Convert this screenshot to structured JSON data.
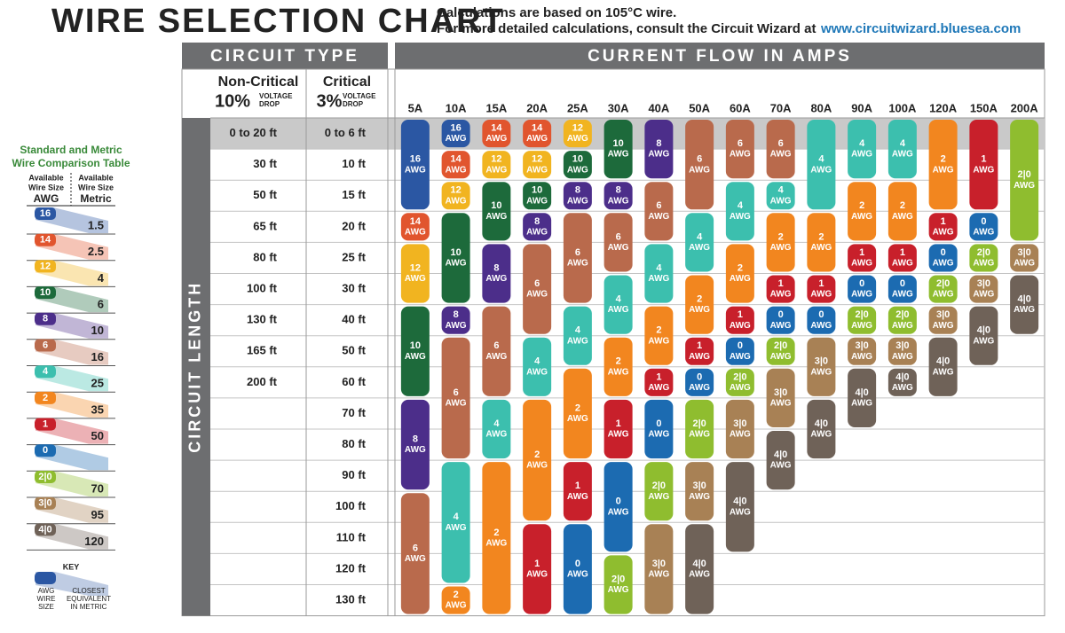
{
  "header": {
    "title": "WIRE SELECTION CHART",
    "note_line1": "Calculations are based on 105°C wire.",
    "note_line2": "For more detailed calculations, consult the Circuit Wizard at",
    "url": "www.circuitwizard.bluesea.com"
  },
  "table": {
    "circuit_type": "CIRCUIT TYPE",
    "current_flow": "CURRENT FLOW IN AMPS",
    "circuit_length": "CIRCUIT LENGTH",
    "non_critical": {
      "name": "Non-Critical",
      "percent": "10%",
      "drop_line1": "VOLTAGE",
      "drop_line2": "DROP"
    },
    "critical": {
      "name": "Critical",
      "percent": "3%",
      "drop_line1": "VOLTAGE",
      "drop_line2": "DROP"
    },
    "non_critical_lengths": [
      "0 to 20 ft",
      "30 ft",
      "50 ft",
      "65 ft",
      "80 ft",
      "100 ft",
      "130 ft",
      "165 ft",
      "200 ft"
    ],
    "critical_lengths": [
      "0 to 6 ft",
      "10 ft",
      "15 ft",
      "20 ft",
      "25 ft",
      "30 ft",
      "40 ft",
      "50 ft",
      "60 ft",
      "70 ft",
      "80 ft",
      "90 ft",
      "100 ft",
      "110 ft",
      "120 ft",
      "130 ft"
    ],
    "amps": [
      "5A",
      "10A",
      "15A",
      "20A",
      "25A",
      "30A",
      "40A",
      "50A",
      "60A",
      "70A",
      "80A",
      "90A",
      "100A",
      "120A",
      "150A",
      "200A"
    ],
    "unit": "AWG",
    "columns": [
      [
        "16",
        "16",
        "16",
        "14",
        "12",
        "12",
        "10",
        "10",
        "10",
        "8",
        "8",
        "8",
        "6",
        "6",
        "6",
        "6"
      ],
      [
        "16",
        "14",
        "12",
        "10",
        "10",
        "10",
        "8",
        "6",
        "6",
        "6",
        "6",
        "4",
        "4",
        "4",
        "4",
        "2"
      ],
      [
        "14",
        "12",
        "10",
        "10",
        "8",
        "8",
        "6",
        "6",
        "6",
        "4",
        "4",
        "2",
        "2",
        "2",
        "2",
        "2"
      ],
      [
        "14",
        "12",
        "10",
        "8",
        "6",
        "6",
        "6",
        "4",
        "4",
        "2",
        "2",
        "2",
        "2",
        "1",
        "1",
        "1"
      ],
      [
        "12",
        "10",
        "8",
        "6",
        "6",
        "6",
        "4",
        "4",
        "2",
        "2",
        "2",
        "1",
        "1",
        "0",
        "0",
        "0"
      ],
      [
        "10",
        "10",
        "8",
        "6",
        "6",
        "4",
        "4",
        "2",
        "2",
        "1",
        "1",
        "0",
        "0",
        "0",
        "2|0",
        "2|0"
      ],
      [
        "8",
        "8",
        "6",
        "6",
        "4",
        "4",
        "2",
        "2",
        "1",
        "0",
        "0",
        "2|0",
        "2|0",
        "3|0",
        "3|0",
        "3|0"
      ],
      [
        "6",
        "6",
        "6",
        "4",
        "4",
        "2",
        "2",
        "1",
        "0",
        "2|0",
        "2|0",
        "3|0",
        "3|0",
        "4|0",
        "4|0",
        "4|0"
      ],
      [
        "6",
        "6",
        "4",
        "4",
        "2",
        "2",
        "1",
        "0",
        "2|0",
        "3|0",
        "3|0",
        "4|0",
        "4|0",
        "4|0",
        null,
        null
      ],
      [
        "6",
        "6",
        "4",
        "2",
        "2",
        "1",
        "0",
        "2|0",
        "3|0",
        "3|0",
        "4|0",
        "4|0",
        null,
        null,
        null,
        null
      ],
      [
        "4",
        "4",
        "4",
        "2",
        "2",
        "1",
        "0",
        "3|0",
        "3|0",
        "4|0",
        "4|0",
        null,
        null,
        null,
        null,
        null
      ],
      [
        "4",
        "4",
        "2",
        "2",
        "1",
        "0",
        "2|0",
        "3|0",
        "4|0",
        "4|0",
        null,
        null,
        null,
        null,
        null,
        null
      ],
      [
        "4",
        "4",
        "2",
        "2",
        "1",
        "0",
        "2|0",
        "3|0",
        "4|0",
        null,
        null,
        null,
        null,
        null,
        null,
        null
      ],
      [
        "2",
        "2",
        "2",
        "1",
        "0",
        "2|0",
        "3|0",
        "4|0",
        "4|0",
        null,
        null,
        null,
        null,
        null,
        null,
        null
      ],
      [
        "1",
        "1",
        "1",
        "0",
        "2|0",
        "3|0",
        "4|0",
        "4|0",
        null,
        null,
        null,
        null,
        null,
        null,
        null,
        null
      ],
      [
        "2|0",
        "2|0",
        "2|0",
        "2|0",
        "3|0",
        "4|0",
        "4|0",
        null,
        null,
        null,
        null,
        null,
        null,
        null,
        null,
        null
      ]
    ],
    "gauge_colors": {
      "16": "#2b57a3",
      "14": "#e1552e",
      "12": "#f1b420",
      "10": "#1d6a3b",
      "8": "#4c2e8a",
      "6": "#b96a4c",
      "4": "#3cbfae",
      "2": "#f2861f",
      "1": "#c8202b",
      "0": "#1c6bb1",
      "2|0": "#8fbd2f",
      "3|0": "#a88155",
      "4|0": "#6f6258"
    }
  },
  "comparison": {
    "title_line1": "Standard and Metric",
    "title_line2": "Wire Comparison Table",
    "awg_header1": "Available",
    "awg_header2": "Wire Size",
    "awg_header3": "AWG",
    "metric_header1": "Available",
    "metric_header2": "Wire Size",
    "metric_header3": "Metric",
    "rows": [
      [
        "16",
        "1.5"
      ],
      [
        "14",
        "2.5"
      ],
      [
        "12",
        "4"
      ],
      [
        "10",
        "6"
      ],
      [
        "8",
        "10"
      ],
      [
        "6",
        "16"
      ],
      [
        "4",
        "25"
      ],
      [
        "2",
        "35"
      ],
      [
        "1",
        "50"
      ],
      [
        "0",
        null
      ],
      [
        "2|0",
        "70"
      ],
      [
        "3|0",
        "95"
      ],
      [
        "4|0",
        "120"
      ]
    ],
    "key": "KEY",
    "key_awg1": "AWG",
    "key_awg2": "WIRE",
    "key_awg3": "SIZE",
    "key_metric1": "CLOSEST",
    "key_metric2": "EQUIVALENT",
    "key_metric3": "IN METRIC"
  }
}
